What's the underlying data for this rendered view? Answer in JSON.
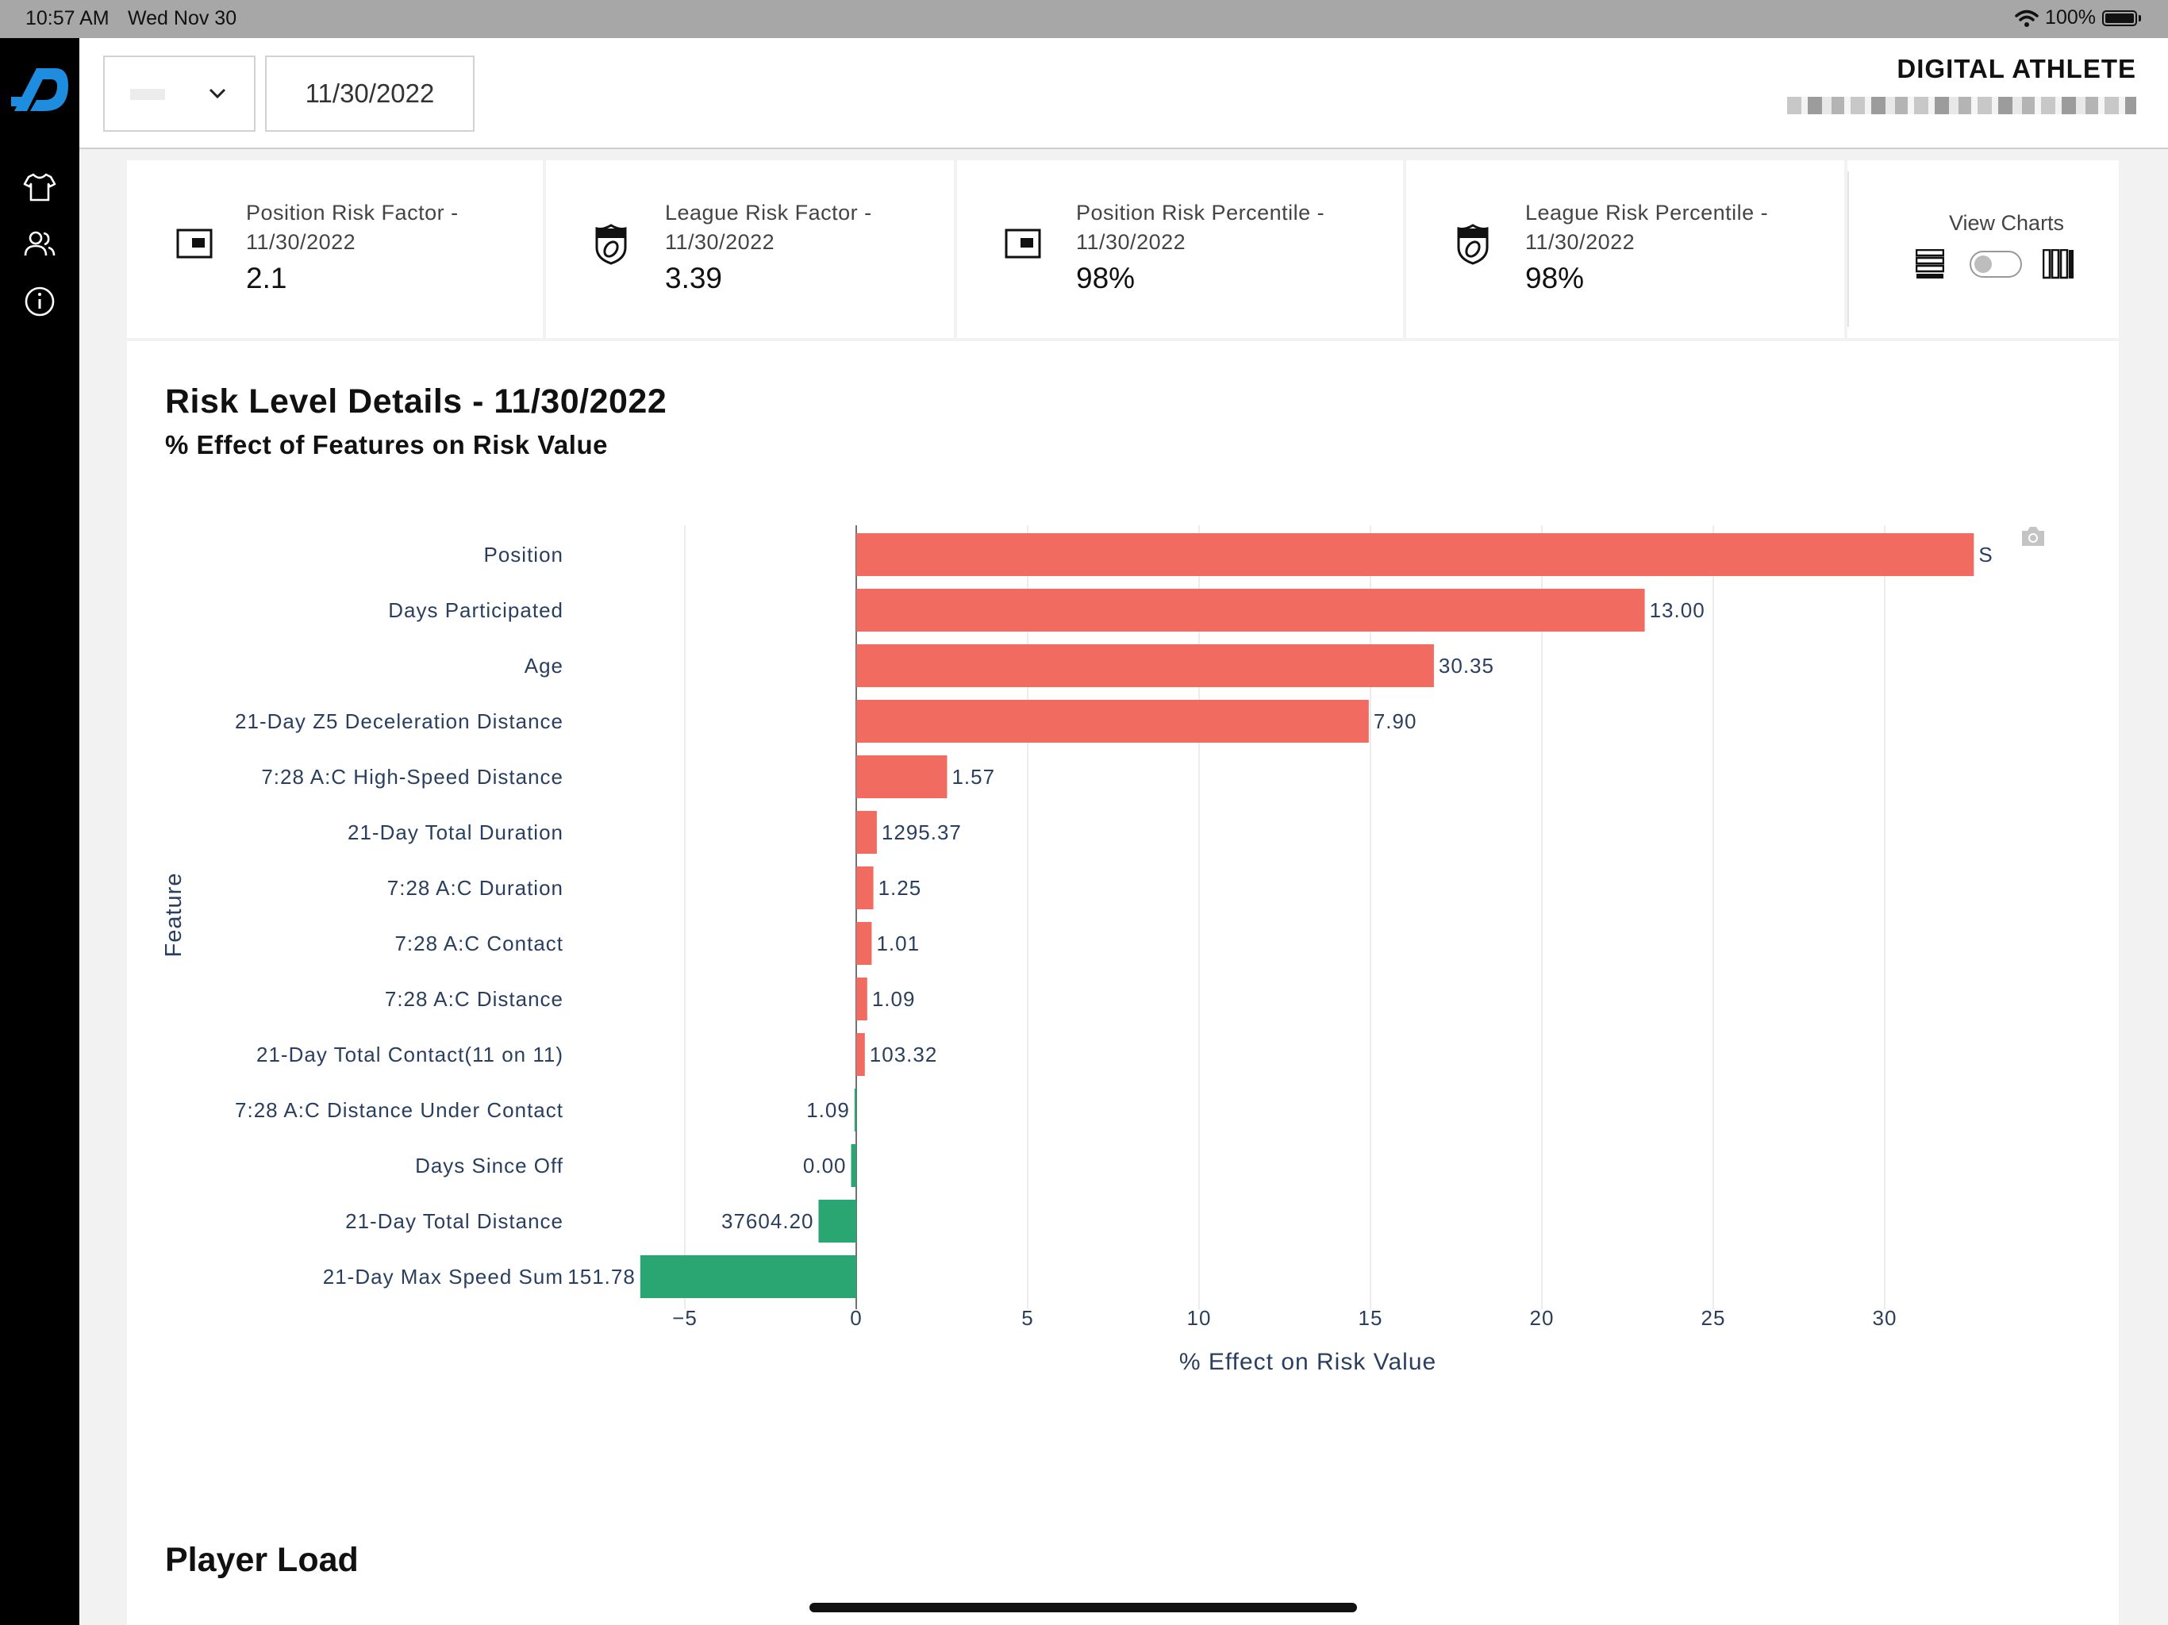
{
  "status_bar": {
    "time": "10:57 AM",
    "date": "Wed Nov 30",
    "battery": "100%"
  },
  "header": {
    "selected_date": "11/30/2022",
    "brand": "DIGITAL ATHLETE"
  },
  "sidebar": {
    "items": [
      "jersey-icon",
      "users-icon",
      "info-icon"
    ]
  },
  "stats": [
    {
      "label_line1": "Position Risk Factor -",
      "label_line2": "11/30/2022",
      "value": "2.1",
      "icon": "position-icon"
    },
    {
      "label_line1": "League Risk Factor -",
      "label_line2": "11/30/2022",
      "value": "3.39",
      "icon": "league-shield-icon"
    },
    {
      "label_line1": "Position Risk Percentile -",
      "label_line2": "11/30/2022",
      "value": "98%",
      "icon": "position-icon"
    },
    {
      "label_line1": "League Risk Percentile -",
      "label_line2": "11/30/2022",
      "value": "98%",
      "icon": "league-shield-icon"
    }
  ],
  "view_charts": {
    "label": "View Charts",
    "toggle_on": false
  },
  "risk_section": {
    "title": "Risk Level Details - 11/30/2022",
    "subtitle": "% Effect of Features on Risk Value"
  },
  "chart_data": {
    "type": "bar",
    "orientation": "horizontal",
    "ylabel": "Feature",
    "xlabel": "% Effect on Risk Value",
    "xlim": [
      -6.5,
      33.5
    ],
    "xticks": [
      "−5",
      "0",
      "5",
      "10",
      "15",
      "20",
      "25",
      "30"
    ],
    "xtick_values": [
      -5,
      0,
      5,
      10,
      15,
      20,
      25,
      30
    ],
    "positive_color": "#f26b60",
    "negative_color": "#2aa673",
    "bars": [
      {
        "feature": "Position",
        "effect": 32.6,
        "label": "S"
      },
      {
        "feature": "Days Participated",
        "effect": 23.0,
        "label": "13.00"
      },
      {
        "feature": "Age",
        "effect": 16.85,
        "label": "30.35"
      },
      {
        "feature": "21-Day Z5 Deceleration Distance",
        "effect": 14.95,
        "label": "7.90"
      },
      {
        "feature": "7:28 A:C High-Speed Distance",
        "effect": 2.65,
        "label": "1.57"
      },
      {
        "feature": "21-Day Total Duration",
        "effect": 0.6,
        "label": "1295.37"
      },
      {
        "feature": "7:28 A:C Duration",
        "effect": 0.5,
        "label": "1.25"
      },
      {
        "feature": "7:28 A:C Contact",
        "effect": 0.45,
        "label": "1.01"
      },
      {
        "feature": "7:28 A:C Distance",
        "effect": 0.32,
        "label": "1.09"
      },
      {
        "feature": "21-Day Total Contact(11 on 11)",
        "effect": 0.25,
        "label": "103.32"
      },
      {
        "feature": "7:28 A:C Distance Under Contact",
        "effect": -0.05,
        "label": "1.09"
      },
      {
        "feature": "Days Since Off",
        "effect": -0.15,
        "label": "0.00"
      },
      {
        "feature": "21-Day Total Distance",
        "effect": -1.1,
        "label": "37604.20"
      },
      {
        "feature": "21-Day Max Speed Sum",
        "effect": -6.3,
        "label": "151.78"
      }
    ]
  },
  "player_load": {
    "title": "Player Load"
  }
}
